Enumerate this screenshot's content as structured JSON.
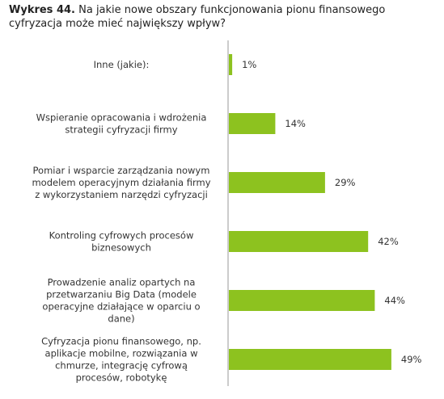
{
  "title": {
    "prefix": "Wykres 44.",
    "text": "Na jakie nowe obszary funkcjonowania pionu finansowego cyfryzacja może mieć największy wpływ?"
  },
  "chart_data": {
    "type": "bar",
    "orientation": "horizontal",
    "title": "Wykres 44. Na jakie nowe obszary funkcjonowania pionu finansowego cyfryzacja może mieć największy wpływ?",
    "categories": [
      [
        "Inne (jakie):"
      ],
      [
        "Wspieranie opracowania i wdrożenia",
        "strategii cyfryzacji firmy"
      ],
      [
        "Pomiar i wsparcie zarządzania nowym",
        "modelem operacyjnym działania firmy",
        "z wykorzystaniem narzędzi cyfryzacji"
      ],
      [
        "Kontroling cyfrowych procesów",
        "biznesowych"
      ],
      [
        "Prowadzenie analiz opartych na",
        "przetwarzaniu Big Data (modele",
        "operacyjne działające w oparciu o",
        "dane)"
      ],
      [
        "Cyfryzacja pionu finansowego, np.",
        "aplikacje mobilne, rozwiązania w",
        "chmurze, integrację cyfrową",
        "procesów, robotykę"
      ]
    ],
    "values": [
      1,
      14,
      29,
      42,
      44,
      49
    ],
    "value_labels": [
      "1%",
      "14%",
      "29%",
      "42%",
      "44%",
      "49%"
    ],
    "unit": "%",
    "xlim": [
      0,
      60
    ],
    "grid": false,
    "legend": "none",
    "bar_color": "#8dc21f",
    "axis_color": "#999999"
  }
}
